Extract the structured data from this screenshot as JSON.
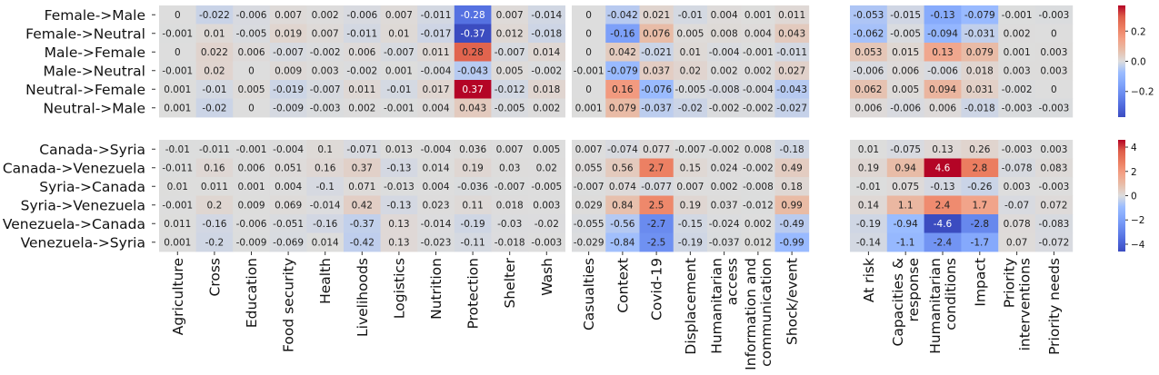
{
  "chart_data": {
    "type": "heatmap",
    "colormap": "coolwarm",
    "rows_top": [
      "Female->Male",
      "Female->Neutral",
      "Male->Female",
      "Male->Neutral",
      "Neutral->Female",
      "Neutral->Male"
    ],
    "rows_bottom": [
      "Canada->Syria",
      "Canada->Venezuela",
      "Syria->Canada",
      "Syria->Venezuela",
      "Venezuela->Canada",
      "Venezuela->Syria"
    ],
    "groups": [
      {
        "columns": [
          "Agriculture",
          "Cross",
          "Education",
          "Food security",
          "Health",
          "Livelihoods",
          "Logistics",
          "Nutrition",
          "Protection",
          "Shelter",
          "Wash"
        ],
        "top": [
          [
            0,
            -0.022,
            -0.006,
            0.007,
            0.002,
            -0.006,
            0.007,
            -0.011,
            -0.28,
            0.007,
            -0.014
          ],
          [
            -0.001,
            0.01,
            -0.005,
            0.019,
            0.007,
            -0.011,
            0.01,
            -0.017,
            -0.37,
            0.012,
            -0.018
          ],
          [
            0,
            0.022,
            0.006,
            -0.007,
            -0.002,
            0.006,
            -0.007,
            0.011,
            0.28,
            -0.007,
            0.014
          ],
          [
            -0.001,
            0.02,
            0,
            0.009,
            0.003,
            -0.002,
            0.001,
            -0.004,
            -0.043,
            0.005,
            -0.002
          ],
          [
            0.001,
            -0.01,
            0.005,
            -0.019,
            -0.007,
            0.011,
            -0.01,
            0.017,
            0.37,
            -0.012,
            0.018
          ],
          [
            0.001,
            -0.02,
            0,
            -0.009,
            -0.003,
            0.002,
            -0.001,
            0.004,
            0.043,
            -0.005,
            0.002
          ]
        ],
        "bottom": [
          [
            -0.01,
            -0.011,
            -0.001,
            -0.004,
            0.1,
            -0.071,
            0.013,
            -0.004,
            0.036,
            0.007,
            0.005
          ],
          [
            -0.011,
            0.16,
            0.006,
            0.051,
            0.16,
            0.37,
            -0.13,
            0.014,
            0.19,
            0.03,
            0.02
          ],
          [
            0.01,
            0.011,
            0.001,
            0.004,
            -0.1,
            0.071,
            -0.013,
            0.004,
            -0.036,
            -0.007,
            -0.005
          ],
          [
            -0.001,
            0.2,
            0.009,
            0.069,
            -0.014,
            0.42,
            -0.13,
            0.023,
            0.11,
            0.018,
            0.003
          ],
          [
            0.011,
            -0.16,
            -0.006,
            -0.051,
            -0.16,
            -0.37,
            0.13,
            -0.014,
            -0.19,
            -0.03,
            -0.02
          ],
          [
            0.001,
            -0.2,
            -0.009,
            -0.069,
            0.014,
            -0.42,
            0.13,
            -0.023,
            -0.11,
            -0.018,
            -0.003
          ]
        ]
      },
      {
        "columns": [
          "Casualties",
          "Context",
          "Covid-19",
          "Displacement",
          "Humanitarian\naccess",
          "Information and\ncommunication",
          "Shock/event"
        ],
        "top": [
          [
            0,
            -0.042,
            0.021,
            -0.01,
            0.004,
            0.001,
            0.011
          ],
          [
            0,
            -0.16,
            0.076,
            0.005,
            0.008,
            0.004,
            0.043
          ],
          [
            0,
            0.042,
            -0.021,
            0.01,
            -0.004,
            -0.001,
            -0.011
          ],
          [
            -0.001,
            -0.079,
            0.037,
            0.02,
            0.002,
            0.002,
            0.027
          ],
          [
            0,
            0.16,
            -0.076,
            -0.005,
            -0.008,
            -0.004,
            -0.043
          ],
          [
            0.001,
            0.079,
            -0.037,
            -0.02,
            -0.002,
            -0.002,
            -0.027
          ]
        ],
        "bottom": [
          [
            0.007,
            -0.074,
            0.077,
            -0.007,
            -0.002,
            0.008,
            -0.18
          ],
          [
            0.055,
            0.56,
            2.7,
            0.15,
            0.024,
            -0.002,
            0.49
          ],
          [
            -0.007,
            0.074,
            -0.077,
            0.007,
            0.002,
            -0.008,
            0.18
          ],
          [
            0.029,
            0.84,
            2.5,
            0.19,
            0.037,
            -0.012,
            0.99
          ],
          [
            -0.055,
            -0.56,
            -2.7,
            -0.15,
            -0.024,
            0.002,
            -0.49
          ],
          [
            -0.029,
            -0.84,
            -2.5,
            -0.19,
            -0.037,
            0.012,
            -0.99
          ]
        ]
      },
      {
        "columns": [
          "At risk",
          "Capacities &\nresponse",
          "Humanitarian\nconditions",
          "Impact",
          "Priority\ninterventions",
          "Priority needs"
        ],
        "top": [
          [
            -0.053,
            -0.015,
            -0.13,
            -0.079,
            -0.001,
            -0.003
          ],
          [
            -0.062,
            -0.005,
            -0.094,
            -0.031,
            0.002,
            0
          ],
          [
            0.053,
            0.015,
            0.13,
            0.079,
            0.001,
            0.003
          ],
          [
            -0.006,
            0.006,
            -0.006,
            0.018,
            0.003,
            0.003
          ],
          [
            0.062,
            0.005,
            0.094,
            0.031,
            -0.002,
            0
          ],
          [
            0.006,
            -0.006,
            0.006,
            -0.018,
            -0.003,
            -0.003
          ]
        ],
        "bottom": [
          [
            0.01,
            -0.075,
            0.13,
            0.26,
            -0.003,
            0.003
          ],
          [
            0.19,
            0.94,
            4.6,
            2.8,
            -0.078,
            0.083
          ],
          [
            -0.01,
            0.075,
            -0.13,
            -0.26,
            0.003,
            -0.003
          ],
          [
            0.14,
            1.1,
            2.4,
            1.7,
            -0.07,
            0.072
          ],
          [
            -0.19,
            -0.94,
            -4.6,
            -2.8,
            0.078,
            -0.083
          ],
          [
            -0.14,
            -1.1,
            -2.4,
            -1.7,
            0.07,
            -0.072
          ]
        ]
      }
    ],
    "colorbar_top": {
      "range": [
        -0.37,
        0.37
      ],
      "ticks": [
        0.2,
        0.0,
        -0.2
      ],
      "tick_labels": [
        "0.2",
        "0.0",
        "−0.2"
      ]
    },
    "colorbar_bottom": {
      "range": [
        -4.6,
        4.6
      ],
      "ticks": [
        4,
        2,
        0,
        -2,
        -4
      ],
      "tick_labels": [
        "4",
        "2",
        "0",
        "−2",
        "−4"
      ]
    }
  }
}
